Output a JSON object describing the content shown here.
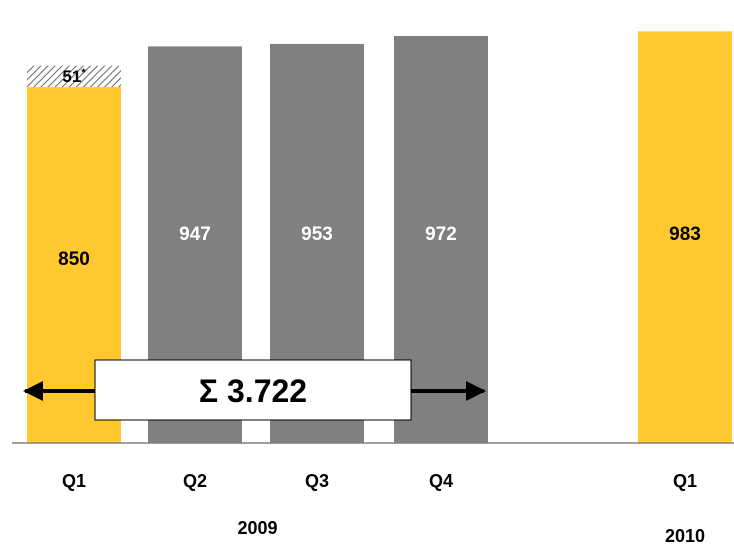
{
  "chart_data": {
    "type": "bar",
    "categories": [
      "Q1",
      "Q2",
      "Q3",
      "Q4",
      "Q1"
    ],
    "groups": [
      {
        "label": "2009",
        "categories": [
          0,
          1,
          2,
          3
        ]
      },
      {
        "label": "2010",
        "categories": [
          4
        ]
      }
    ],
    "values": [
      850,
      947,
      953,
      972,
      983
    ],
    "extra_segment": {
      "category_index": 0,
      "value": 51,
      "label": "51",
      "marker": "*"
    },
    "sum_label": "Σ 3.722",
    "sum_range": [
      0,
      3
    ],
    "title": "",
    "xlabel": "",
    "ylabel": "",
    "ylim": [
      0,
      983
    ],
    "grid": false,
    "legend": "none"
  },
  "colors": {
    "highlight": "#FFC82E",
    "base": "#808080",
    "hatch": "#666666",
    "axis": "#808080",
    "arrow": "#000000",
    "label_dark": "#000000",
    "label_light": "#ffffff"
  }
}
